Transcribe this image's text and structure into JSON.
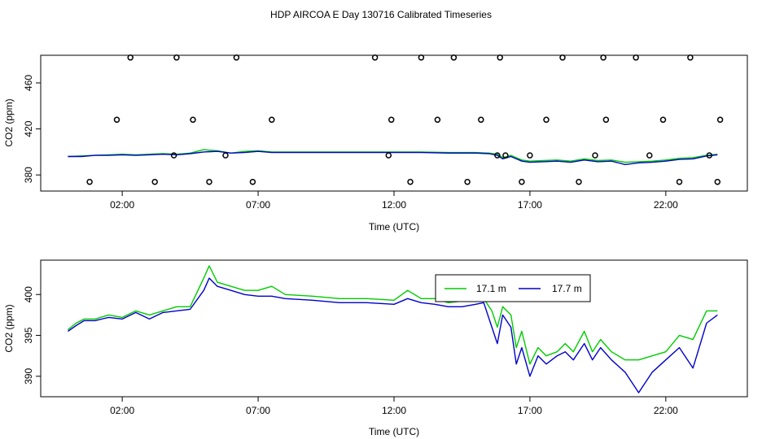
{
  "title": "HDP AIRCOA E  Day 130716  Calibrated Timeseries",
  "chart_data": [
    {
      "type": "line",
      "xlabel": "Time (UTC)",
      "ylabel": "CO2 (ppm)",
      "xlim": [
        -1.0,
        25.0
      ],
      "ylim": [
        366,
        484
      ],
      "xticks": [
        2,
        7,
        12,
        17,
        22
      ],
      "xtick_labels": [
        "02:00",
        "07:00",
        "12:00",
        "17:00",
        "22:00"
      ],
      "yticks": [
        380,
        420,
        460
      ],
      "ytick_labels": [
        "380",
        "420",
        "460"
      ],
      "grid": false,
      "colors": {
        "green": "#00cc00",
        "blue": "#0000cc"
      },
      "series": [
        {
          "color": "#00cc00",
          "x": [
            0.0,
            0.5,
            1.0,
            1.5,
            2.0,
            2.5,
            3.0,
            3.5,
            4.0,
            4.5,
            5.0,
            5.5,
            6.0,
            6.5,
            7.0,
            7.5,
            8.0,
            9.0,
            10.0,
            11.0,
            12.0,
            13.0,
            14.0,
            15.0,
            15.5,
            15.8,
            16.0,
            16.3,
            16.7,
            17.0,
            17.5,
            18.0,
            18.5,
            19.0,
            19.5,
            20.0,
            20.5,
            21.0,
            21.5,
            22.0,
            22.5,
            23.0,
            23.5,
            23.9
          ],
          "y": [
            396.0,
            396.5,
            397.0,
            397.5,
            398.0,
            397.5,
            398.0,
            398.5,
            398.0,
            399.0,
            402.0,
            401.0,
            399.0,
            400.5,
            401.0,
            400.0,
            400.0,
            400.0,
            400.0,
            400.0,
            400.0,
            400.0,
            399.5,
            399.5,
            399.0,
            398.0,
            395.0,
            397.0,
            393.0,
            392.0,
            392.5,
            393.0,
            392.0,
            394.0,
            392.5,
            393.0,
            391.0,
            391.5,
            392.0,
            393.0,
            394.5,
            395.0,
            397.0,
            398.0
          ]
        },
        {
          "color": "#0000cc",
          "x": [
            0.0,
            0.5,
            1.0,
            1.5,
            2.0,
            2.5,
            3.0,
            3.5,
            4.0,
            4.5,
            5.0,
            5.5,
            6.0,
            6.5,
            7.0,
            7.5,
            8.0,
            9.0,
            10.0,
            11.0,
            12.0,
            13.0,
            14.0,
            15.0,
            15.5,
            15.8,
            16.0,
            16.3,
            16.7,
            17.0,
            17.5,
            18.0,
            18.5,
            19.0,
            19.5,
            20.0,
            20.5,
            21.0,
            21.5,
            22.0,
            22.5,
            23.0,
            23.5,
            23.9
          ],
          "y": [
            396.0,
            396.0,
            397.0,
            397.0,
            397.5,
            397.0,
            397.5,
            398.0,
            397.5,
            398.5,
            400.0,
            400.5,
            399.0,
            399.5,
            400.5,
            399.5,
            399.5,
            399.5,
            399.5,
            399.5,
            399.5,
            399.5,
            399.0,
            399.0,
            398.5,
            397.0,
            394.0,
            396.0,
            392.0,
            391.0,
            391.5,
            392.0,
            391.0,
            393.0,
            391.5,
            392.0,
            389.0,
            390.5,
            391.0,
            392.0,
            393.5,
            394.0,
            396.5,
            397.5
          ]
        }
      ],
      "scatter": {
        "marker": "open-circle",
        "x": [
          0.8,
          1.8,
          2.3,
          3.2,
          3.9,
          4.0,
          4.6,
          5.2,
          5.8,
          6.2,
          6.8,
          7.5,
          11.3,
          11.8,
          11.9,
          12.6,
          13.0,
          13.6,
          14.2,
          14.7,
          15.2,
          15.8,
          15.9,
          16.1,
          16.7,
          17.0,
          17.6,
          18.2,
          18.8,
          19.4,
          19.7,
          19.8,
          20.9,
          21.4,
          21.9,
          22.5,
          22.9,
          23.6,
          23.9,
          24.0
        ],
        "y": [
          374,
          428,
          482,
          374,
          397,
          482,
          428,
          374,
          397,
          482,
          374,
          428,
          482,
          397,
          428,
          374,
          482,
          428,
          482,
          374,
          428,
          397,
          482,
          397,
          374,
          397,
          428,
          482,
          374,
          397,
          482,
          428,
          482,
          397,
          428,
          374,
          482,
          397,
          374,
          428
        ]
      }
    },
    {
      "type": "line",
      "xlabel": "Time (UTC)",
      "ylabel": "CO2 (ppm)",
      "xlim": [
        -1.0,
        25.0
      ],
      "ylim": [
        387.5,
        404.2
      ],
      "xticks": [
        2,
        7,
        12,
        17,
        22
      ],
      "xtick_labels": [
        "02:00",
        "07:00",
        "12:00",
        "17:00",
        "22:00"
      ],
      "yticks": [
        390,
        395,
        400
      ],
      "ytick_labels": [
        "390",
        "395",
        "400"
      ],
      "grid": false,
      "legend": {
        "placement": "top-right-inner",
        "entries": [
          "17.1 m",
          "17.7 m"
        ]
      },
      "series": [
        {
          "name": "17.1 m",
          "color": "#00cc00",
          "x": [
            0.0,
            0.3,
            0.6,
            1.0,
            1.5,
            2.0,
            2.5,
            3.0,
            3.5,
            4.0,
            4.5,
            5.0,
            5.2,
            5.5,
            6.0,
            6.5,
            7.0,
            7.5,
            8.0,
            9.0,
            10.0,
            11.0,
            12.0,
            12.5,
            13.0,
            13.5,
            14.0,
            14.5,
            15.0,
            15.3,
            15.6,
            15.8,
            16.0,
            16.3,
            16.5,
            16.7,
            17.0,
            17.3,
            17.6,
            18.0,
            18.3,
            18.6,
            19.0,
            19.3,
            19.6,
            20.0,
            20.5,
            21.0,
            21.5,
            22.0,
            22.5,
            23.0,
            23.5,
            23.9
          ],
          "y": [
            395.7,
            396.5,
            397.0,
            397.0,
            397.5,
            397.2,
            398.0,
            397.5,
            398.0,
            398.5,
            398.5,
            402.0,
            403.5,
            401.5,
            401.0,
            400.5,
            400.5,
            401.0,
            400.0,
            399.8,
            399.5,
            399.5,
            399.3,
            400.5,
            399.5,
            399.5,
            399.0,
            399.2,
            399.5,
            399.5,
            398.0,
            396.0,
            398.5,
            397.5,
            393.5,
            395.5,
            391.5,
            393.5,
            392.5,
            393.0,
            394.0,
            393.0,
            395.5,
            393.0,
            394.5,
            393.0,
            392.0,
            392.0,
            392.5,
            393.0,
            395.0,
            394.5,
            398.0,
            398.0
          ]
        },
        {
          "name": "17.7 m",
          "color": "#0000cc",
          "x": [
            0.0,
            0.3,
            0.6,
            1.0,
            1.5,
            2.0,
            2.5,
            3.0,
            3.5,
            4.0,
            4.5,
            5.0,
            5.2,
            5.5,
            6.0,
            6.5,
            7.0,
            7.5,
            8.0,
            9.0,
            10.0,
            11.0,
            12.0,
            12.5,
            13.0,
            13.5,
            14.0,
            14.5,
            15.0,
            15.3,
            15.6,
            15.8,
            16.0,
            16.3,
            16.5,
            16.7,
            17.0,
            17.3,
            17.6,
            18.0,
            18.3,
            18.6,
            19.0,
            19.3,
            19.6,
            20.0,
            20.5,
            21.0,
            21.5,
            22.0,
            22.5,
            23.0,
            23.5,
            23.9
          ],
          "y": [
            395.5,
            396.2,
            396.8,
            396.8,
            397.2,
            397.0,
            397.8,
            397.0,
            397.8,
            398.0,
            398.2,
            400.5,
            402.0,
            401.0,
            400.5,
            400.0,
            399.8,
            399.8,
            399.5,
            399.3,
            399.0,
            399.0,
            398.8,
            399.5,
            399.0,
            398.8,
            398.5,
            398.5,
            398.8,
            399.0,
            396.0,
            394.0,
            397.5,
            396.0,
            391.5,
            393.5,
            390.0,
            392.5,
            391.5,
            392.5,
            393.0,
            392.0,
            394.0,
            392.0,
            393.5,
            392.0,
            390.5,
            388.0,
            390.5,
            392.0,
            393.5,
            391.0,
            396.5,
            397.5
          ]
        }
      ]
    }
  ]
}
